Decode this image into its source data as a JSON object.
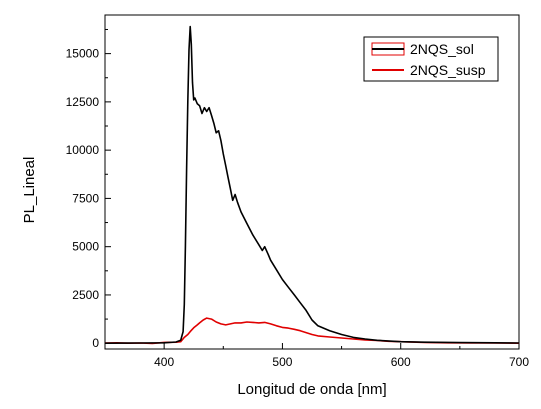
{
  "chart_data": {
    "type": "line",
    "xlabel": "Longitud de onda [nm]",
    "ylabel": "PL_Lineal",
    "xlim": [
      350,
      700
    ],
    "ylim": [
      -300,
      17000
    ],
    "x_ticks": [
      400,
      500,
      600,
      700
    ],
    "y_ticks": [
      0,
      2500,
      5000,
      7500,
      10000,
      12500,
      15000
    ],
    "legend_position": "top-right",
    "colors": {
      "2NQS_sol": "#000000",
      "2NQS_susp": "#e00000"
    },
    "series": [
      {
        "name": "2NQS_sol",
        "points": [
          [
            350,
            0
          ],
          [
            380,
            10
          ],
          [
            400,
            20
          ],
          [
            410,
            60
          ],
          [
            414,
            150
          ],
          [
            416,
            600
          ],
          [
            417,
            2000
          ],
          [
            418,
            5000
          ],
          [
            419,
            9000
          ],
          [
            420,
            12500
          ],
          [
            421,
            15200
          ],
          [
            422,
            16400
          ],
          [
            423,
            15500
          ],
          [
            424,
            13500
          ],
          [
            425,
            12600
          ],
          [
            426,
            12700
          ],
          [
            428,
            12400
          ],
          [
            430,
            12300
          ],
          [
            432,
            11900
          ],
          [
            434,
            12200
          ],
          [
            436,
            12000
          ],
          [
            438,
            12200
          ],
          [
            440,
            11800
          ],
          [
            442,
            11400
          ],
          [
            444,
            10900
          ],
          [
            446,
            11000
          ],
          [
            448,
            10500
          ],
          [
            450,
            9800
          ],
          [
            452,
            9200
          ],
          [
            454,
            8600
          ],
          [
            456,
            8000
          ],
          [
            458,
            7400
          ],
          [
            460,
            7700
          ],
          [
            462,
            7300
          ],
          [
            465,
            6800
          ],
          [
            470,
            6200
          ],
          [
            475,
            5600
          ],
          [
            480,
            5100
          ],
          [
            483,
            4800
          ],
          [
            485,
            5000
          ],
          [
            488,
            4600
          ],
          [
            490,
            4300
          ],
          [
            495,
            3800
          ],
          [
            500,
            3300
          ],
          [
            505,
            2900
          ],
          [
            510,
            2500
          ],
          [
            515,
            2100
          ],
          [
            520,
            1700
          ],
          [
            525,
            1200
          ],
          [
            530,
            900
          ],
          [
            540,
            650
          ],
          [
            550,
            450
          ],
          [
            560,
            300
          ],
          [
            570,
            220
          ],
          [
            580,
            150
          ],
          [
            600,
            80
          ],
          [
            620,
            50
          ],
          [
            650,
            30
          ],
          [
            680,
            20
          ],
          [
            700,
            10
          ]
        ]
      },
      {
        "name": "2NQS_susp",
        "points": [
          [
            350,
            10
          ],
          [
            360,
            20
          ],
          [
            370,
            0
          ],
          [
            380,
            10
          ],
          [
            390,
            -10
          ],
          [
            400,
            40
          ],
          [
            410,
            50
          ],
          [
            414,
            80
          ],
          [
            417,
            300
          ],
          [
            420,
            450
          ],
          [
            422,
            600
          ],
          [
            425,
            800
          ],
          [
            428,
            950
          ],
          [
            430,
            1050
          ],
          [
            433,
            1200
          ],
          [
            436,
            1300
          ],
          [
            440,
            1250
          ],
          [
            444,
            1100
          ],
          [
            448,
            1000
          ],
          [
            452,
            950
          ],
          [
            456,
            1000
          ],
          [
            460,
            1050
          ],
          [
            465,
            1050
          ],
          [
            470,
            1100
          ],
          [
            475,
            1080
          ],
          [
            480,
            1050
          ],
          [
            485,
            1080
          ],
          [
            490,
            1000
          ],
          [
            495,
            900
          ],
          [
            500,
            820
          ],
          [
            505,
            780
          ],
          [
            510,
            720
          ],
          [
            515,
            650
          ],
          [
            520,
            550
          ],
          [
            525,
            450
          ],
          [
            530,
            380
          ],
          [
            540,
            320
          ],
          [
            550,
            270
          ],
          [
            560,
            220
          ],
          [
            570,
            170
          ],
          [
            580,
            140
          ],
          [
            590,
            100
          ],
          [
            600,
            80
          ],
          [
            620,
            40
          ],
          [
            640,
            20
          ],
          [
            660,
            10
          ],
          [
            680,
            10
          ],
          [
            700,
            0
          ]
        ]
      }
    ]
  }
}
